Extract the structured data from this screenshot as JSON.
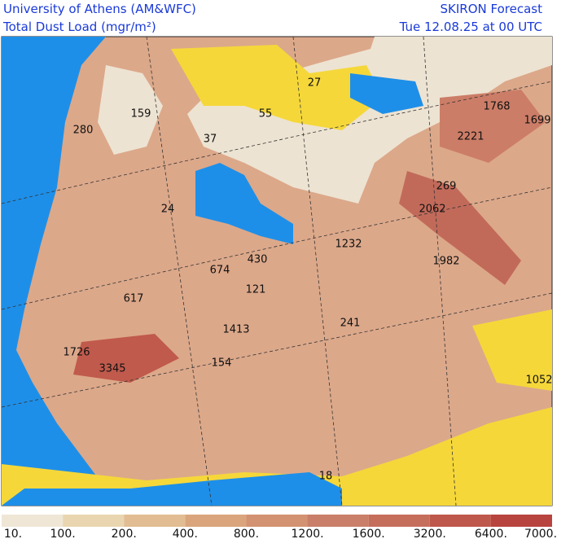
{
  "header": {
    "institution": "University of Athens (AM&WFC)",
    "product": "Total Dust Load (mgr/m²)",
    "model": "SKIRON Forecast",
    "valid_time": "Tue 12.08.25 at 00 UTC"
  },
  "map": {
    "labels": [
      "159",
      "280",
      "27",
      "55",
      "37",
      "1768",
      "1699",
      "2221",
      "269",
      "24",
      "2062",
      "1232",
      "430",
      "674",
      "1982",
      "121",
      "617",
      "1413",
      "241",
      "1726",
      "3345",
      "154",
      "1052",
      "18"
    ]
  },
  "legend": {
    "labels": [
      "10.",
      "100.",
      "200.",
      "400.",
      "800.",
      "1200.",
      "1600.",
      "3200.",
      "6400.",
      "7000."
    ],
    "colors": [
      "#efe6d6",
      "#e9d6b0",
      "#e2bd93",
      "#daa57c",
      "#d39271",
      "#c97f69",
      "#c66e5c",
      "#bf584c",
      "#b84440"
    ]
  }
}
